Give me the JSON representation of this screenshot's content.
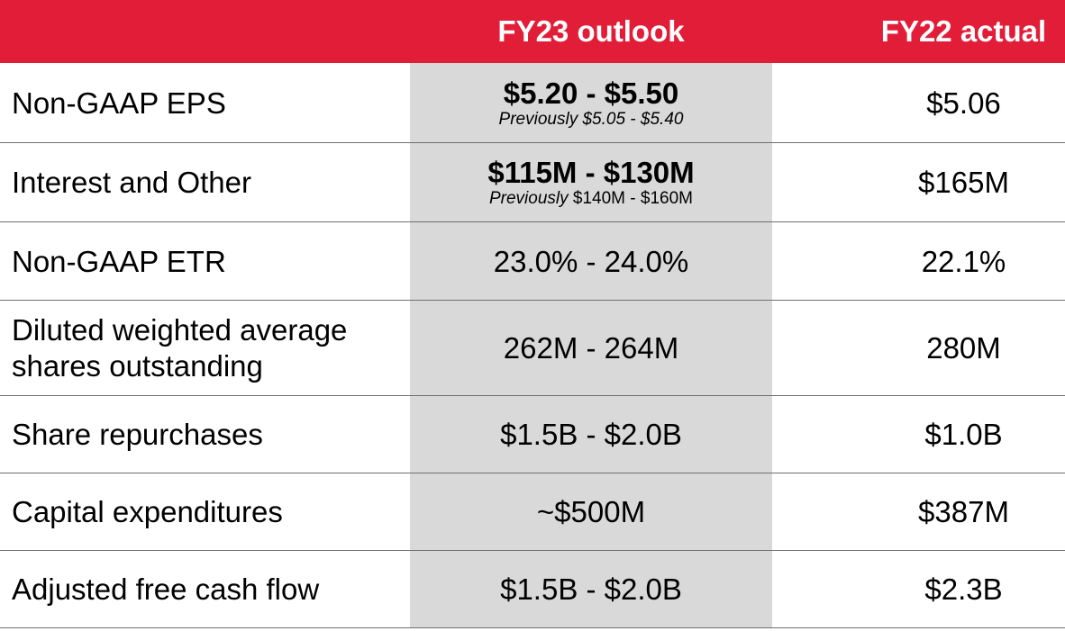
{
  "header": {
    "outlook": "FY23 outlook",
    "actual": "FY22 actual"
  },
  "rows": [
    {
      "label": "Non-GAAP EPS",
      "outlook": "$5.20 - $5.50",
      "prev_prefix": "Previously $5.05 - $5.40",
      "prev_value": "",
      "actual": "$5.06"
    },
    {
      "label": "Interest and Other",
      "outlook": "$115M - $130M",
      "prev_prefix": "Previously",
      "prev_value": " $140M - $160M",
      "actual": "$165M"
    },
    {
      "label": "Non-GAAP ETR",
      "outlook": "23.0% - 24.0%",
      "actual": "22.1%"
    },
    {
      "label": "Diluted weighted average shares outstanding",
      "outlook": "262M - 264M",
      "actual": "280M"
    },
    {
      "label": "Share repurchases",
      "outlook": "$1.5B - $2.0B",
      "actual": "$1.0B"
    },
    {
      "label": "Capital expenditures",
      "outlook": "~$500M",
      "actual": "$387M"
    },
    {
      "label": "Adjusted free cash flow",
      "outlook": "$1.5B - $2.0B",
      "actual": "$2.3B"
    }
  ],
  "colors": {
    "header_bg": "#e21d38",
    "shade_bg": "#d9d9d9",
    "divider": "#6f6f6f"
  }
}
